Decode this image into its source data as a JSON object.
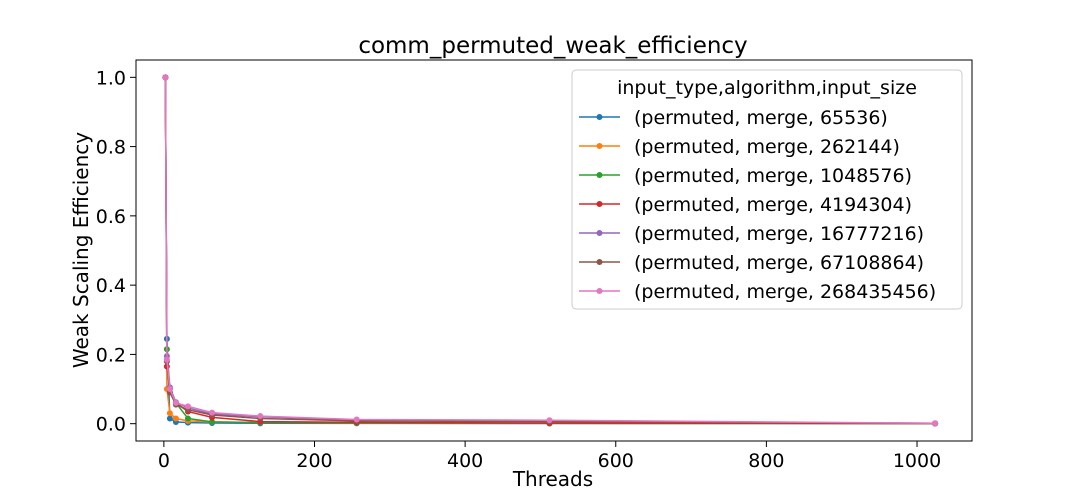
{
  "chart_data": {
    "type": "line",
    "title": "comm_permuted_weak_efficiency",
    "xlabel": "Threads",
    "ylabel": "Weak Scaling Efficiency",
    "xlim": [
      -37,
      1073
    ],
    "ylim": [
      -0.05,
      1.05
    ],
    "xticks": [
      0,
      200,
      400,
      600,
      800,
      1000
    ],
    "yticks": [
      0.0,
      0.2,
      0.4,
      0.6,
      0.8,
      1.0
    ],
    "xtick_labels": [
      "0",
      "200",
      "400",
      "600",
      "800",
      "1000"
    ],
    "ytick_labels": [
      "0.0",
      "0.2",
      "0.4",
      "0.6",
      "0.8",
      "1.0"
    ],
    "grid": false,
    "legend_title": "input_type,algorithm,input_size",
    "legend_position": "top-right",
    "x": [
      2,
      4,
      8,
      16,
      32,
      64,
      128,
      256,
      512,
      1024
    ],
    "series": [
      {
        "name": "(permuted, merge, 65536)",
        "color": "#1f77b4",
        "values": [
          1.0,
          0.245,
          0.015,
          0.005,
          0.003,
          0.002,
          0.001,
          0.0008,
          0.0005,
          0.0003
        ]
      },
      {
        "name": "(permuted, merge, 262144)",
        "color": "#ff7f0e",
        "values": [
          1.0,
          0.1,
          0.03,
          0.015,
          0.008,
          0.005,
          0.003,
          0.002,
          0.001,
          0.0005
        ]
      },
      {
        "name": "(permuted, merge, 1048576)",
        "color": "#2ca02c",
        "values": [
          1.0,
          0.215,
          0.1,
          0.06,
          0.015,
          0.005,
          0.003,
          0.002,
          0.001,
          0.0006
        ]
      },
      {
        "name": "(permuted, merge, 4194304)",
        "color": "#d62728",
        "values": [
          1.0,
          0.165,
          0.1,
          0.06,
          0.035,
          0.018,
          0.006,
          0.004,
          0.002,
          0.0008
        ]
      },
      {
        "name": "(permuted, merge, 16777216)",
        "color": "#9467bd",
        "values": [
          1.0,
          0.195,
          0.105,
          0.062,
          0.045,
          0.028,
          0.02,
          0.01,
          0.007,
          0.001
        ]
      },
      {
        "name": "(permuted, merge, 67108864)",
        "color": "#8c564b",
        "values": [
          1.0,
          0.18,
          0.09,
          0.055,
          0.04,
          0.025,
          0.015,
          0.008,
          0.006,
          0.001
        ]
      },
      {
        "name": "(permuted, merge, 268435456)",
        "color": "#e377c2",
        "values": [
          1.0,
          0.185,
          0.1,
          0.06,
          0.05,
          0.032,
          0.022,
          0.012,
          0.01,
          0.001
        ]
      }
    ]
  }
}
